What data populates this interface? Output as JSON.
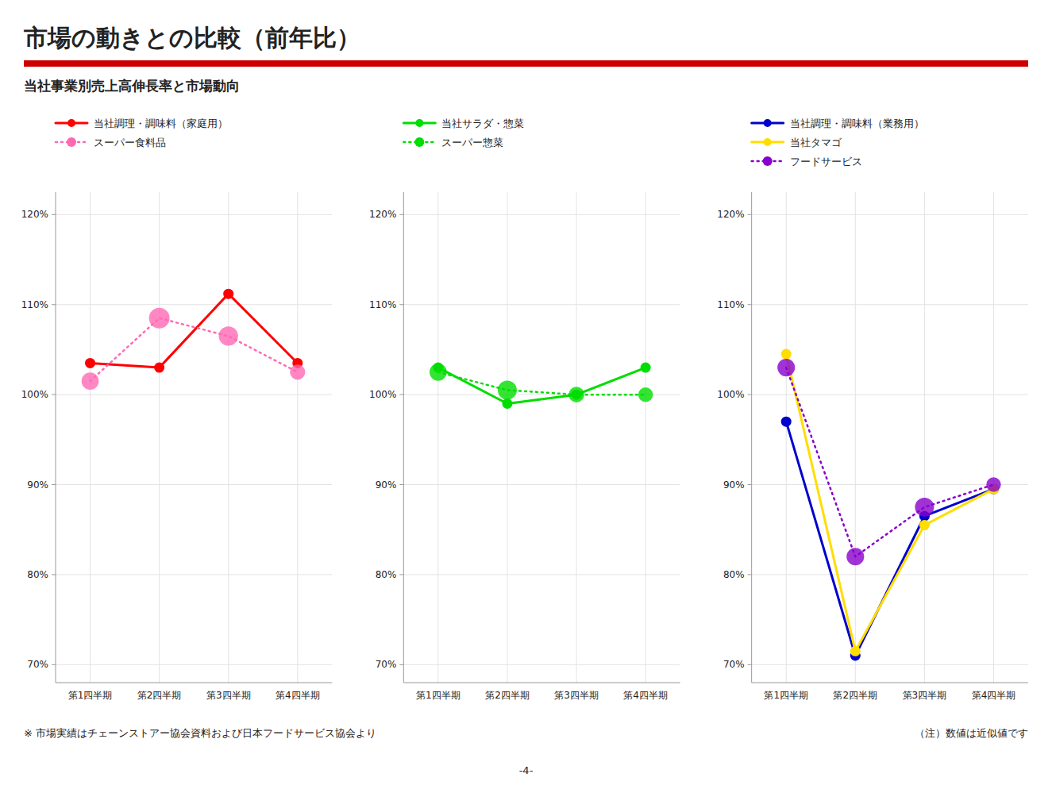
{
  "chart_data": [
    {
      "type": "line",
      "title": "市場の動きとの比較（前年比）",
      "subtitle": "当社事業別売上高伸長率と市場動向",
      "annotations": [
        "※ 市場実績はチェーンストアー協会資料および日本フードサービス協会より",
        "（注）数値は近似値です",
        "-4-"
      ],
      "categories": [
        "第1四半期",
        "第2四半期",
        "第3四半期",
        "第4四半期"
      ],
      "ylim": [
        0.68,
        1.225
      ],
      "yticks": [
        {
          "value": 0.7,
          "label": "70%"
        },
        {
          "value": 0.8,
          "label": "80%"
        },
        {
          "value": 0.9,
          "label": "90%"
        },
        {
          "value": 1.0,
          "label": "100%"
        },
        {
          "value": 1.1,
          "label": "110%"
        },
        {
          "value": 1.2,
          "label": "120%"
        }
      ],
      "grid": true,
      "series": [
        {
          "name": "当社調理・調味料（家庭用）",
          "color": "#FF0000",
          "line_style": "solid",
          "marker": "circle",
          "values": [
            1.035,
            1.03,
            1.112,
            1.035
          ]
        },
        {
          "name": "スーパー食料品",
          "color": "#FF69B4",
          "line_style": "dotted",
          "marker": "circle",
          "values": [
            1.015,
            1.085,
            1.065,
            1.025
          ],
          "sizes": [
            280,
            400,
            350,
            220
          ]
        }
      ]
    },
    {
      "type": "line",
      "categories": [
        "第1四半期",
        "第2四半期",
        "第3四半期",
        "第4四半期"
      ],
      "ylim": [
        0.68,
        1.225
      ],
      "yticks": [
        {
          "value": 0.7,
          "label": "70%"
        },
        {
          "value": 0.8,
          "label": "80%"
        },
        {
          "value": 0.9,
          "label": "90%"
        },
        {
          "value": 1.0,
          "label": "100%"
        },
        {
          "value": 1.1,
          "label": "110%"
        },
        {
          "value": 1.2,
          "label": "120%"
        }
      ],
      "grid": true,
      "series": [
        {
          "name": "当社サラダ・惣菜",
          "color": "#00DD00",
          "line_style": "solid",
          "marker": "circle",
          "values": [
            1.03,
            0.99,
            1.0,
            1.03
          ]
        },
        {
          "name": "スーパー惣菜",
          "color": "#00DD00",
          "line_style": "dotted",
          "marker": "circle",
          "values": [
            1.025,
            1.005,
            1.0,
            1.0
          ],
          "sizes": [
            280,
            340,
            230,
            200
          ]
        }
      ]
    },
    {
      "type": "line",
      "categories": [
        "第1四半期",
        "第2四半期",
        "第3四半期",
        "第4四半期"
      ],
      "ylim": [
        0.68,
        1.225
      ],
      "yticks": [
        {
          "value": 0.7,
          "label": "70%"
        },
        {
          "value": 0.8,
          "label": "80%"
        },
        {
          "value": 0.9,
          "label": "90%"
        },
        {
          "value": 1.0,
          "label": "100%"
        },
        {
          "value": 1.1,
          "label": "110%"
        },
        {
          "value": 1.2,
          "label": "120%"
        }
      ],
      "grid": true,
      "series": [
        {
          "name": "当社調理・調味料（業務用）",
          "color": "#0000CC",
          "line_style": "solid",
          "marker": "circle",
          "values": [
            0.97,
            0.71,
            0.865,
            0.895
          ]
        },
        {
          "name": "当社タマゴ",
          "color": "#FFDD00",
          "line_style": "solid",
          "marker": "circle",
          "values": [
            1.045,
            0.715,
            0.855,
            0.895
          ]
        },
        {
          "name": "フードサービス",
          "color": "#8800CC",
          "line_style": "dotted",
          "marker": "circle",
          "values": [
            1.03,
            0.82,
            0.875,
            0.9
          ],
          "sizes": [
            290,
            290,
            340,
            200
          ]
        }
      ]
    }
  ]
}
